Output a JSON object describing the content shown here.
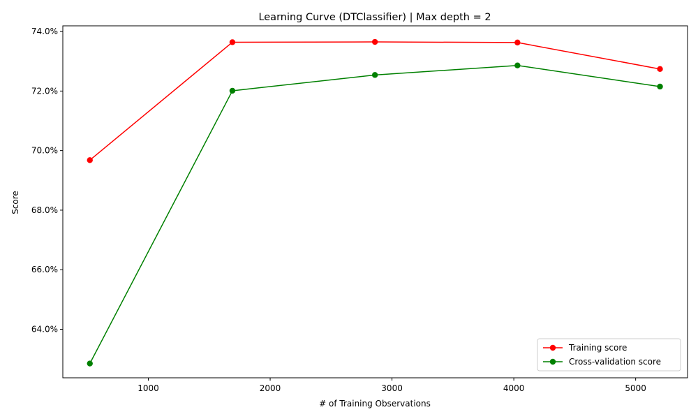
{
  "chart_data": {
    "type": "line",
    "title": "Learning Curve (DTClassifier) | Max depth = 2",
    "xlabel": "# of Training Observations",
    "ylabel": "Score",
    "xlim": [
      298,
      5426
    ],
    "ylim": [
      0.6237,
      0.7419
    ],
    "x_ticks": [
      1000,
      2000,
      3000,
      4000,
      5000
    ],
    "x_tick_labels": [
      "1000",
      "2000",
      "3000",
      "4000",
      "5000"
    ],
    "y_ticks": [
      0.64,
      0.66,
      0.68,
      0.7,
      0.72,
      0.74
    ],
    "y_tick_labels": [
      "64.0%",
      "66.0%",
      "68.0%",
      "70.0%",
      "72.0%",
      "74.0%"
    ],
    "grid": false,
    "legend_position": "bottom-right",
    "x": [
      520,
      1690,
      2860,
      4030,
      5200
    ],
    "series": [
      {
        "name": "Training score",
        "color": "#ff0000",
        "values": [
          0.6968,
          0.7364,
          0.7365,
          0.7363,
          0.7274
        ]
      },
      {
        "name": "Cross-validation score",
        "color": "#008000",
        "values": [
          0.6285,
          0.7201,
          0.7254,
          0.7286,
          0.7215
        ]
      }
    ]
  }
}
